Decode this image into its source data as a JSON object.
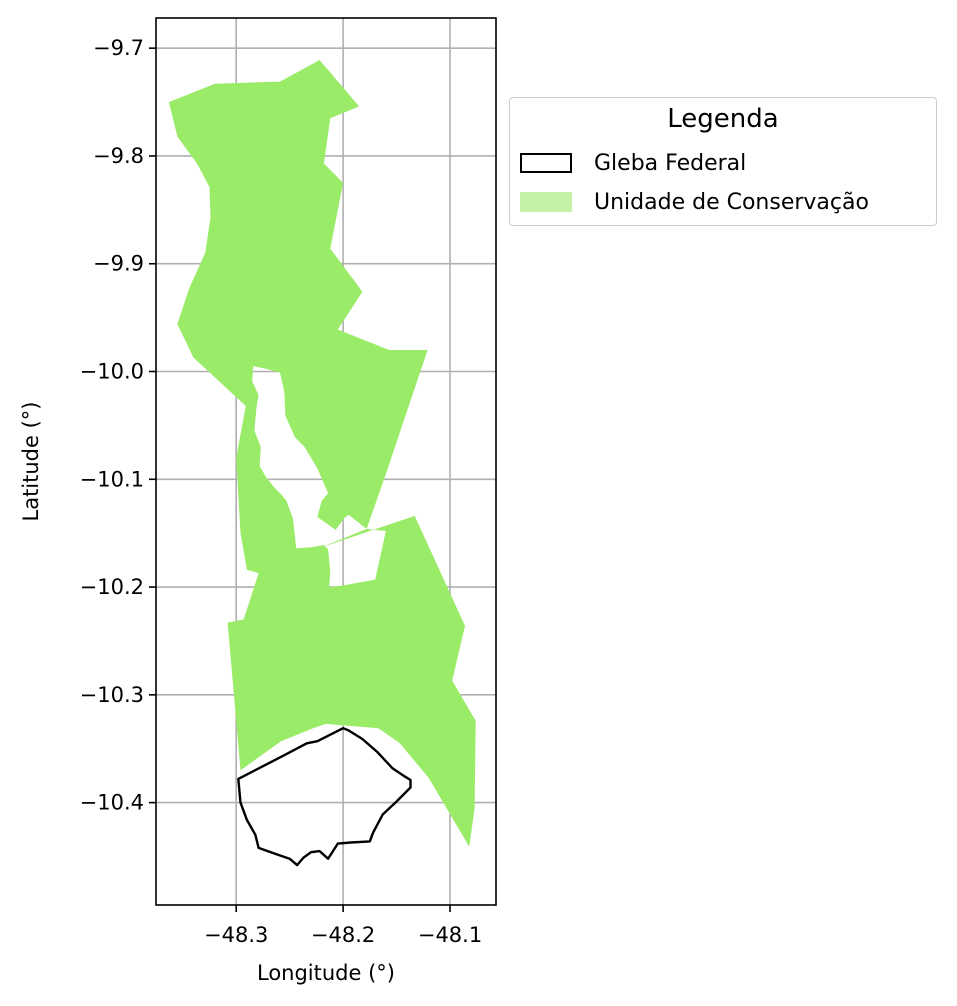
{
  "map": {
    "xlabel": "Longitude (°)",
    "ylabel": "Latitude (°)",
    "x_ticks": [
      -48.3,
      -48.2,
      -48.1
    ],
    "x_tick_labels": [
      "−48.3",
      "−48.2",
      "−48.1"
    ],
    "y_ticks": [
      -9.7,
      -9.8,
      -9.9,
      -10.0,
      -10.1,
      -10.2,
      -10.3,
      -10.4
    ],
    "y_tick_labels": [
      "−9.7",
      "−9.8",
      "−9.9",
      "−10.0",
      "−10.1",
      "−10.2",
      "−10.3",
      "−10.4"
    ],
    "xlim": [
      -48.375,
      -48.057
    ],
    "ylim": [
      -10.495,
      -9.672
    ],
    "grid": true,
    "legend_placement": "outside-right-top",
    "colors": {
      "uc_fill": "#9aeb68",
      "uc_legend": "#c4f2a6",
      "gleba_edge": "#000000",
      "grid": "#b0b0b0"
    },
    "layers": {
      "unidade_de_conservacao": [
        [
          -48.363,
          -9.75
        ],
        [
          -48.357,
          -9.748
        ],
        [
          -48.32,
          -9.733
        ],
        [
          -48.3,
          -9.733
        ],
        [
          -48.292,
          -9.732
        ],
        [
          -48.259,
          -9.731
        ],
        [
          -48.222,
          -9.711
        ],
        [
          -48.205,
          -9.732
        ],
        [
          -48.185,
          -9.754
        ],
        [
          -48.212,
          -9.765
        ],
        [
          -48.218,
          -9.807
        ],
        [
          -48.2,
          -9.825
        ],
        [
          -48.212,
          -9.886
        ],
        [
          -48.182,
          -9.926
        ],
        [
          -48.205,
          -9.961
        ],
        [
          -48.157,
          -9.98
        ],
        [
          -48.172,
          -10.03
        ],
        [
          -48.195,
          -10.133
        ],
        [
          -48.168,
          -10.146
        ],
        [
          -48.16,
          -10.148
        ],
        [
          -48.17,
          -10.193
        ],
        [
          -48.175,
          -10.194
        ],
        [
          -48.203,
          -10.199
        ],
        [
          -48.213,
          -10.2
        ],
        [
          -48.212,
          -10.186
        ],
        [
          -48.214,
          -10.165
        ],
        [
          -48.218,
          -10.161
        ],
        [
          -48.23,
          -10.163
        ],
        [
          -48.244,
          -10.164
        ],
        [
          -48.245,
          -10.153
        ],
        [
          -48.247,
          -10.136
        ],
        [
          -48.253,
          -10.12
        ],
        [
          -48.258,
          -10.114
        ],
        [
          -48.264,
          -10.108
        ],
        [
          -48.272,
          -10.098
        ],
        [
          -48.278,
          -10.088
        ],
        [
          -48.277,
          -10.07
        ],
        [
          -48.283,
          -10.055
        ],
        [
          -48.281,
          -10.033
        ],
        [
          -48.279,
          -10.022
        ],
        [
          -48.285,
          -10.009
        ],
        [
          -48.284,
          -9.995
        ],
        [
          -48.27,
          -9.998
        ],
        [
          -48.259,
          -10.001
        ],
        [
          -48.255,
          -10.019
        ],
        [
          -48.254,
          -10.041
        ],
        [
          -48.245,
          -10.061
        ],
        [
          -48.236,
          -10.07
        ],
        [
          -48.224,
          -10.09
        ],
        [
          -48.214,
          -10.113
        ],
        [
          -48.22,
          -10.12
        ],
        [
          -48.224,
          -10.135
        ],
        [
          -48.207,
          -10.147
        ],
        [
          -48.199,
          -10.136
        ],
        [
          -48.195,
          -10.133
        ],
        [
          -48.121,
          -9.98
        ],
        [
          -48.122,
          -9.979
        ],
        [
          -48.157,
          -9.98
        ],
        [
          -48.205,
          -9.961
        ],
        [
          -48.182,
          -9.926
        ],
        [
          -48.212,
          -9.886
        ],
        [
          -48.2,
          -9.825
        ],
        [
          -48.218,
          -9.807
        ],
        [
          -48.212,
          -9.765
        ],
        [
          -48.185,
          -9.754
        ]
      ],
      "uc_main": [
        [
          -48.363,
          -9.75
        ],
        [
          -48.32,
          -9.733
        ],
        [
          -48.292,
          -9.732
        ],
        [
          -48.259,
          -9.731
        ],
        [
          -48.222,
          -9.711
        ],
        [
          -48.185,
          -9.754
        ],
        [
          -48.212,
          -9.765
        ],
        [
          -48.218,
          -9.807
        ],
        [
          -48.2,
          -9.825
        ],
        [
          -48.212,
          -9.886
        ],
        [
          -48.182,
          -9.926
        ],
        [
          -48.205,
          -9.961
        ],
        [
          -48.157,
          -9.98
        ],
        [
          -48.121,
          -9.98
        ],
        [
          -48.14,
          -10.036
        ],
        [
          -48.161,
          -10.098
        ],
        [
          -48.178,
          -10.146
        ],
        [
          -48.22,
          -10.163
        ],
        [
          -48.133,
          -10.134
        ],
        [
          -48.086,
          -10.236
        ],
        [
          -48.098,
          -10.287
        ],
        [
          -48.076,
          -10.324
        ],
        [
          -48.077,
          -10.405
        ],
        [
          -48.082,
          -10.441
        ],
        [
          -48.12,
          -10.377
        ],
        [
          -48.147,
          -10.345
        ],
        [
          -48.167,
          -10.331
        ],
        [
          -48.216,
          -10.327
        ],
        [
          -48.228,
          -10.331
        ],
        [
          -48.258,
          -10.343
        ],
        [
          -48.296,
          -10.37
        ],
        [
          -48.308,
          -10.233
        ],
        [
          -48.293,
          -10.23
        ],
        [
          -48.279,
          -10.187
        ],
        [
          -48.29,
          -10.184
        ],
        [
          -48.296,
          -10.15
        ],
        [
          -48.3,
          -10.08
        ],
        [
          -48.291,
          -10.032
        ],
        [
          -48.34,
          -9.987
        ],
        [
          -48.355,
          -9.956
        ],
        [
          -48.344,
          -9.923
        ],
        [
          -48.329,
          -9.89
        ],
        [
          -48.324,
          -9.857
        ],
        [
          -48.325,
          -9.829
        ],
        [
          -48.336,
          -9.808
        ],
        [
          -48.355,
          -9.782
        ],
        [
          -48.363,
          -9.75
        ]
      ],
      "uc_hole": [
        [
          -48.284,
          -9.995
        ],
        [
          -48.27,
          -9.998
        ],
        [
          -48.259,
          -10.001
        ],
        [
          -48.255,
          -10.019
        ],
        [
          -48.254,
          -10.041
        ],
        [
          -48.245,
          -10.061
        ],
        [
          -48.236,
          -10.07
        ],
        [
          -48.224,
          -10.09
        ],
        [
          -48.214,
          -10.113
        ],
        [
          -48.22,
          -10.12
        ],
        [
          -48.224,
          -10.135
        ],
        [
          -48.207,
          -10.147
        ],
        [
          -48.199,
          -10.136
        ],
        [
          -48.195,
          -10.133
        ],
        [
          -48.178,
          -10.146
        ],
        [
          -48.16,
          -10.148
        ],
        [
          -48.17,
          -10.193
        ],
        [
          -48.175,
          -10.194
        ],
        [
          -48.203,
          -10.199
        ],
        [
          -48.213,
          -10.2
        ],
        [
          -48.212,
          -10.186
        ],
        [
          -48.214,
          -10.165
        ],
        [
          -48.218,
          -10.161
        ],
        [
          -48.23,
          -10.163
        ],
        [
          -48.244,
          -10.164
        ],
        [
          -48.245,
          -10.153
        ],
        [
          -48.247,
          -10.136
        ],
        [
          -48.253,
          -10.12
        ],
        [
          -48.258,
          -10.114
        ],
        [
          -48.264,
          -10.108
        ],
        [
          -48.272,
          -10.098
        ],
        [
          -48.278,
          -10.088
        ],
        [
          -48.277,
          -10.07
        ],
        [
          -48.283,
          -10.055
        ],
        [
          -48.281,
          -10.033
        ],
        [
          -48.279,
          -10.022
        ],
        [
          -48.285,
          -10.009
        ],
        [
          -48.284,
          -9.995
        ]
      ],
      "gleba_federal": [
        [
          -48.298,
          -10.378
        ],
        [
          -48.255,
          -10.356
        ],
        [
          -48.234,
          -10.345
        ],
        [
          -48.224,
          -10.343
        ],
        [
          -48.2,
          -10.331
        ],
        [
          -48.195,
          -10.333
        ],
        [
          -48.182,
          -10.341
        ],
        [
          -48.168,
          -10.353
        ],
        [
          -48.154,
          -10.368
        ],
        [
          -48.142,
          -10.376
        ],
        [
          -48.137,
          -10.379
        ],
        [
          -48.137,
          -10.386
        ],
        [
          -48.15,
          -10.399
        ],
        [
          -48.163,
          -10.411
        ],
        [
          -48.172,
          -10.428
        ],
        [
          -48.175,
          -10.436
        ],
        [
          -48.193,
          -10.437
        ],
        [
          -48.205,
          -10.438
        ],
        [
          -48.214,
          -10.452
        ],
        [
          -48.222,
          -10.445
        ],
        [
          -48.23,
          -10.446
        ],
        [
          -48.237,
          -10.451
        ],
        [
          -48.243,
          -10.458
        ],
        [
          -48.25,
          -10.452
        ],
        [
          -48.265,
          -10.447
        ],
        [
          -48.279,
          -10.442
        ],
        [
          -48.282,
          -10.43
        ],
        [
          -48.29,
          -10.416
        ],
        [
          -48.296,
          -10.4
        ],
        [
          -48.298,
          -10.378
        ]
      ]
    }
  },
  "legend": {
    "title": "Legenda",
    "entries": [
      "Gleba Federal",
      "Unidade de Conservação"
    ]
  }
}
